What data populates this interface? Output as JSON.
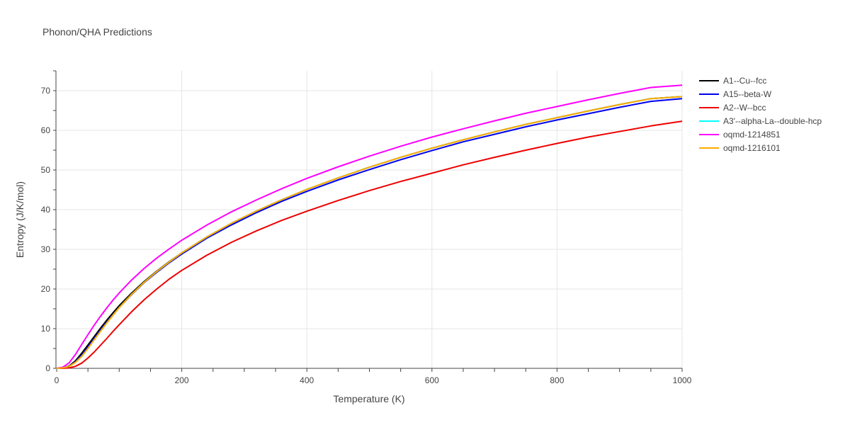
{
  "chart_data": {
    "type": "line",
    "title": "Phonon/QHA Predictions",
    "xlabel": "Temperature (K)",
    "ylabel": "Entropy (J/K/mol)",
    "xlim": [
      0,
      1000
    ],
    "ylim": [
      0,
      75
    ],
    "xticks": [
      0,
      200,
      400,
      600,
      800,
      1000
    ],
    "yticks": [
      0,
      10,
      20,
      30,
      40,
      50,
      60,
      70
    ],
    "grid": true,
    "legend_position": "top-right-outside",
    "x": [
      0,
      10,
      20,
      30,
      40,
      50,
      60,
      70,
      80,
      90,
      100,
      120,
      140,
      160,
      180,
      200,
      240,
      280,
      320,
      360,
      400,
      450,
      500,
      550,
      600,
      650,
      700,
      750,
      800,
      850,
      900,
      950,
      1000
    ],
    "series": [
      {
        "name": "A1--Cu--fcc",
        "color": "#000000",
        "values": [
          0,
          0.1,
          0.6,
          1.9,
          3.8,
          5.9,
          8.0,
          10.1,
          12.1,
          14.0,
          15.8,
          19.0,
          21.9,
          24.5,
          26.9,
          29.1,
          33.1,
          36.6,
          39.7,
          42.5,
          45.1,
          48.0,
          50.7,
          53.2,
          55.5,
          57.6,
          59.6,
          61.5,
          63.2,
          64.9,
          66.5,
          68.0,
          68.5
        ]
      },
      {
        "name": "A15--beta-W",
        "color": "#0000ee",
        "values": [
          0,
          0.1,
          0.5,
          1.6,
          3.3,
          5.4,
          7.5,
          9.6,
          11.6,
          13.5,
          15.3,
          18.6,
          21.6,
          24.2,
          26.6,
          28.8,
          32.8,
          36.2,
          39.3,
          42.1,
          44.6,
          47.5,
          50.1,
          52.6,
          54.9,
          57.1,
          59.0,
          60.9,
          62.6,
          64.2,
          65.8,
          67.3,
          68.0
        ]
      },
      {
        "name": "A2--W--bcc",
        "color": "#ee0000",
        "values": [
          0,
          0.0,
          0.1,
          0.5,
          1.3,
          2.6,
          4.1,
          5.8,
          7.5,
          9.3,
          11.0,
          14.3,
          17.3,
          20.0,
          22.5,
          24.7,
          28.5,
          31.8,
          34.7,
          37.3,
          39.6,
          42.3,
          44.8,
          47.1,
          49.2,
          51.3,
          53.2,
          55.0,
          56.7,
          58.3,
          59.7,
          61.1,
          62.3
        ]
      },
      {
        "name": "A3'--alpha-La--double-hcp",
        "color": "#00ffff",
        "values": [
          0,
          0.1,
          0.5,
          1.5,
          3.0,
          5.0,
          7.2,
          9.3,
          11.4,
          13.4,
          15.3,
          18.7,
          21.7,
          24.4,
          26.8,
          29.1,
          33.1,
          36.6,
          39.7,
          42.5,
          45.1,
          48.0,
          50.7,
          53.2,
          55.5,
          57.6,
          59.6,
          61.5,
          63.2,
          64.9,
          66.5,
          68.0,
          68.5
        ]
      },
      {
        "name": "oqmd-1214851",
        "color": "#ff00ff",
        "values": [
          0,
          0.3,
          1.4,
          3.5,
          6.0,
          8.5,
          10.9,
          13.1,
          15.2,
          17.2,
          19.0,
          22.3,
          25.2,
          27.8,
          30.1,
          32.3,
          36.1,
          39.5,
          42.5,
          45.3,
          47.9,
          50.8,
          53.5,
          56.0,
          58.3,
          60.4,
          62.4,
          64.3,
          66.0,
          67.7,
          69.3,
          70.8,
          71.4
        ]
      },
      {
        "name": "oqmd-1216101",
        "color": "#ffaa00",
        "values": [
          0,
          0.1,
          0.5,
          1.5,
          3.0,
          5.0,
          7.2,
          9.3,
          11.4,
          13.4,
          15.3,
          18.7,
          21.7,
          24.4,
          26.8,
          29.1,
          33.1,
          36.6,
          39.7,
          42.5,
          45.1,
          48.0,
          50.7,
          53.2,
          55.5,
          57.6,
          59.6,
          61.5,
          63.2,
          64.9,
          66.5,
          68.0,
          68.5
        ]
      }
    ]
  }
}
